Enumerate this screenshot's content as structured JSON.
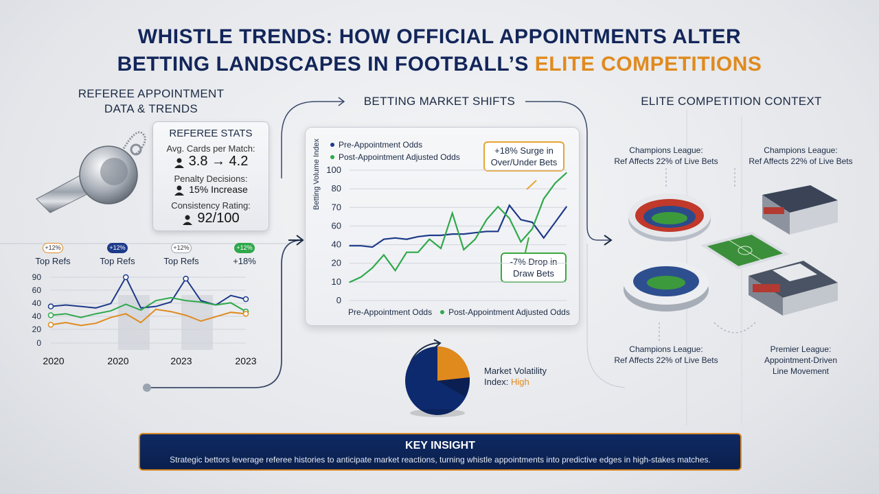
{
  "title": {
    "line1": "WHISTLE TRENDS: HOW OFFICIAL APPOINTMENTS ALTER",
    "line2_main": "BETTING LANDSCAPES IN FOOTBALL’S ",
    "line2_accent": "ELITE COMPETITIONS"
  },
  "sections": {
    "left": {
      "line1": "REFEREE APPOINTMENT",
      "line2": "DATA & TRENDS"
    },
    "middle": "BETTING MARKET SHIFTS",
    "right": "ELITE COMPETITION CONTEXT"
  },
  "referee_stats": {
    "heading": "REFEREE STATS",
    "cards_label": "Avg. Cards per Match:",
    "cards_value": "3.8 → 4.2",
    "penalty_label": "Penalty Decisions:",
    "penalty_value": "15% Increase",
    "consistency_label": "Consistency Rating:",
    "consistency_value": "92/100"
  },
  "small_chart": {
    "badges": [
      "+12%",
      "+12%",
      "+12%",
      "+12%"
    ],
    "badge_labels": [
      "Top Refs",
      "Top Refs",
      "Top Refs",
      "+18%"
    ],
    "x_labels": [
      "2020",
      "2020",
      "2023",
      "2023"
    ],
    "y_ticks": [
      "90",
      "60",
      "40",
      "40",
      "20",
      "0"
    ]
  },
  "main_chart": {
    "legend_pre": "Pre-Appointment Odds",
    "legend_post": "Post-Appointment Adjusted Odds",
    "ylabel": "Betting Volume Index",
    "y_ticks": [
      "100",
      "80",
      "70",
      "60",
      "40",
      "20",
      "10",
      "0"
    ],
    "bottom_pre": "Pre-Appointment Odds",
    "bottom_post": "Post-Appointment Adjusted Odds",
    "callout_surge_1": "+18% Surge in",
    "callout_surge_2": "Over/Under Bets",
    "callout_drop_1": "-7% Drop in",
    "callout_drop_2": "Draw Bets"
  },
  "volatility": {
    "label_1": "Market Volatility",
    "label_2": "Index: ",
    "level": "High"
  },
  "elite": {
    "tl_1": "Champions League:",
    "tl_2": "Ref Affects 22% of Live Bets",
    "tr_1": "Champions League:",
    "tr_2": "Ref Affects 22% of Live Bets",
    "bl_1": "Champions League:",
    "bl_2": "Ref Affects 22% of Live Bets",
    "br_1": "Premier League:",
    "br_2": "Appointment-Driven",
    "br_3": "Line Movement"
  },
  "insight": {
    "heading": "KEY INSIGHT",
    "text": "Strategic bettors leverage referee histories to anticipate market reactions, turning whistle appointments into predictive edges in high-stakes matches."
  },
  "colors": {
    "navy": "#13265a",
    "orange": "#e08a1e",
    "green": "#2ea84a",
    "blue": "#1d3a8a"
  },
  "chart_data": [
    {
      "type": "line",
      "ylim": [
        0,
        100
      ],
      "series": [
        {
          "name": "Pre-Appointment Odds",
          "values": [
            42,
            42,
            41,
            47,
            48,
            47,
            49,
            50,
            50,
            51,
            51,
            52,
            53,
            53,
            73,
            62,
            60,
            48,
            60,
            72
          ]
        },
        {
          "name": "Post-Appointment Adjusted Odds",
          "values": [
            14,
            18,
            25,
            35,
            23,
            37,
            37,
            47,
            40,
            67,
            39,
            47,
            62,
            72,
            63,
            45,
            55,
            78,
            90,
            98
          ]
        }
      ]
    },
    {
      "type": "line",
      "ylim": [
        0,
        90
      ],
      "series": [
        {
          "values": [
            50,
            52,
            50,
            48,
            54,
            90,
            48,
            50,
            56,
            88,
            58,
            52,
            65,
            60
          ]
        },
        {
          "values": [
            38,
            40,
            35,
            40,
            44,
            53,
            45,
            58,
            62,
            58,
            56,
            52,
            55,
            43
          ]
        },
        {
          "values": [
            25,
            28,
            24,
            27,
            35,
            40,
            28,
            46,
            43,
            38,
            30,
            36,
            42,
            40
          ]
        }
      ]
    }
  ]
}
